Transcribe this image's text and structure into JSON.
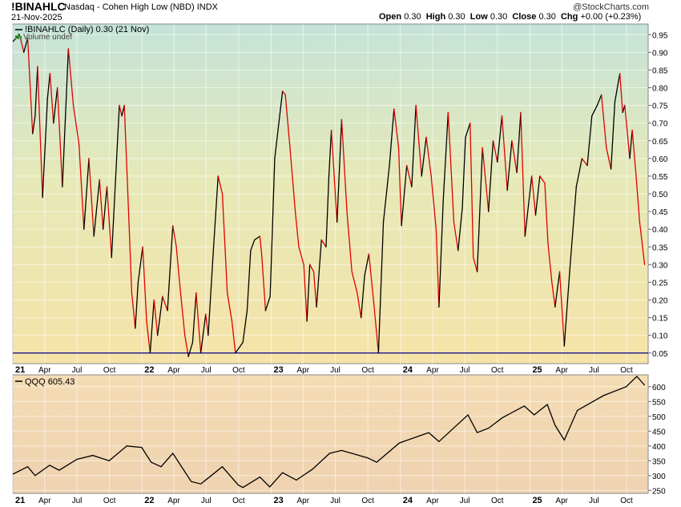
{
  "header": {
    "symbol": "!BINAHLC",
    "description": "Nasdaq - Cohen High Low (NBD)",
    "exchange": "INDX",
    "date": "21-Nov-2025",
    "open_label": "Open",
    "open": "0.30",
    "high_label": "High",
    "high": "0.30",
    "low_label": "Low",
    "low": "0.30",
    "close_label": "Close",
    "close": "0.30",
    "chg_label": "Chg",
    "chg": "+0.00 (+0.23%)",
    "logo": "@StockCharts.com"
  },
  "colors": {
    "up": "#000000",
    "down": "#e00000",
    "qqq": "#000000",
    "baseline": "#000080"
  },
  "chart_data": [
    {
      "type": "line",
      "legend": "!BINAHLC (Daily) 0.30 (21 Nov)",
      "volume_note": "Volume undef",
      "ylim": [
        0.02,
        0.98
      ],
      "yticks": [
        0.95,
        0.9,
        0.85,
        0.8,
        0.75,
        0.7,
        0.65,
        0.6,
        0.55,
        0.5,
        0.45,
        0.4,
        0.35,
        0.3,
        0.25,
        0.2,
        0.15,
        0.1,
        0.05
      ],
      "ytick_labels": [
        "0.95",
        "0.90",
        "0.85",
        "0.80",
        "0.75",
        "0.70",
        "0.65",
        "0.60",
        "0.55",
        "0.50",
        "0.45",
        "0.40",
        "0.35",
        "0.30",
        "0.25",
        "0.20",
        "0.15",
        "0.10",
        "0.05"
      ],
      "horizontal_line": 0.05,
      "x_range": [
        "2021-01-01",
        "2025-12-01"
      ],
      "xtick_labels": [
        "21",
        "Apr",
        "Jul",
        "Oct",
        "22",
        "Apr",
        "Jul",
        "Oct",
        "23",
        "Apr",
        "Jul",
        "Oct",
        "24",
        "Apr",
        "Jul",
        "Oct",
        "25",
        "Apr",
        "Jul",
        "Oct"
      ],
      "xtick_dates": [
        "2021-01-01",
        "2021-04-01",
        "2021-07-01",
        "2021-10-01",
        "2022-01-01",
        "2022-04-01",
        "2022-07-01",
        "2022-10-01",
        "2023-01-01",
        "2023-04-01",
        "2023-07-01",
        "2023-10-01",
        "2024-01-01",
        "2024-04-01",
        "2024-07-01",
        "2024-10-01",
        "2025-01-01",
        "2025-04-01",
        "2025-07-01",
        "2025-10-01"
      ],
      "year_labels": [
        "21",
        "22",
        "23",
        "24",
        "25"
      ],
      "series": [
        {
          "values": [
            [
              "2021-01-01",
              0.93
            ],
            [
              "2021-01-20",
              0.95
            ],
            [
              "2021-02-01",
              0.9
            ],
            [
              "2021-02-12",
              0.94
            ],
            [
              "2021-02-26",
              0.67
            ],
            [
              "2021-03-05",
              0.72
            ],
            [
              "2021-03-12",
              0.86
            ],
            [
              "2021-03-26",
              0.49
            ],
            [
              "2021-04-09",
              0.77
            ],
            [
              "2021-04-16",
              0.84
            ],
            [
              "2021-04-26",
              0.7
            ],
            [
              "2021-05-07",
              0.8
            ],
            [
              "2021-05-21",
              0.52
            ],
            [
              "2021-06-07",
              0.91
            ],
            [
              "2021-06-21",
              0.75
            ],
            [
              "2021-07-07",
              0.64
            ],
            [
              "2021-07-21",
              0.4
            ],
            [
              "2021-08-04",
              0.6
            ],
            [
              "2021-08-18",
              0.38
            ],
            [
              "2021-09-03",
              0.54
            ],
            [
              "2021-09-13",
              0.4
            ],
            [
              "2021-09-24",
              0.52
            ],
            [
              "2021-10-07",
              0.32
            ],
            [
              "2021-10-29",
              0.75
            ],
            [
              "2021-11-05",
              0.72
            ],
            [
              "2021-11-12",
              0.75
            ],
            [
              "2021-11-22",
              0.5
            ],
            [
              "2021-12-03",
              0.22
            ],
            [
              "2021-12-13",
              0.12
            ],
            [
              "2021-12-21",
              0.25
            ],
            [
              "2022-01-03",
              0.35
            ],
            [
              "2022-01-14",
              0.14
            ],
            [
              "2022-01-24",
              0.05
            ],
            [
              "2022-02-04",
              0.2
            ],
            [
              "2022-02-14",
              0.1
            ],
            [
              "2022-02-28",
              0.21
            ],
            [
              "2022-03-14",
              0.17
            ],
            [
              "2022-03-29",
              0.41
            ],
            [
              "2022-04-08",
              0.35
            ],
            [
              "2022-04-19",
              0.23
            ],
            [
              "2022-05-02",
              0.1
            ],
            [
              "2022-05-12",
              0.04
            ],
            [
              "2022-05-24",
              0.08
            ],
            [
              "2022-06-03",
              0.22
            ],
            [
              "2022-06-16",
              0.05
            ],
            [
              "2022-06-30",
              0.16
            ],
            [
              "2022-07-07",
              0.1
            ],
            [
              "2022-07-21",
              0.33
            ],
            [
              "2022-08-04",
              0.55
            ],
            [
              "2022-08-16",
              0.5
            ],
            [
              "2022-08-30",
              0.22
            ],
            [
              "2022-09-12",
              0.14
            ],
            [
              "2022-09-22",
              0.05
            ],
            [
              "2022-10-13",
              0.08
            ],
            [
              "2022-10-25",
              0.17
            ],
            [
              "2022-11-04",
              0.34
            ],
            [
              "2022-11-15",
              0.37
            ],
            [
              "2022-11-30",
              0.38
            ],
            [
              "2022-12-05",
              0.33
            ],
            [
              "2022-12-16",
              0.17
            ],
            [
              "2022-12-29",
              0.21
            ],
            [
              "2023-01-11",
              0.6
            ],
            [
              "2023-02-02",
              0.79
            ],
            [
              "2023-02-10",
              0.78
            ],
            [
              "2023-02-24",
              0.62
            ],
            [
              "2023-03-10",
              0.45
            ],
            [
              "2023-03-20",
              0.35
            ],
            [
              "2023-04-03",
              0.3
            ],
            [
              "2023-04-12",
              0.14
            ],
            [
              "2023-04-20",
              0.3
            ],
            [
              "2023-05-01",
              0.28
            ],
            [
              "2023-05-09",
              0.18
            ],
            [
              "2023-05-23",
              0.37
            ],
            [
              "2023-06-05",
              0.35
            ],
            [
              "2023-06-13",
              0.55
            ],
            [
              "2023-06-20",
              0.68
            ],
            [
              "2023-07-06",
              0.42
            ],
            [
              "2023-07-19",
              0.71
            ],
            [
              "2023-08-03",
              0.45
            ],
            [
              "2023-08-17",
              0.28
            ],
            [
              "2023-09-01",
              0.22
            ],
            [
              "2023-09-12",
              0.15
            ],
            [
              "2023-09-22",
              0.27
            ],
            [
              "2023-10-04",
              0.33
            ],
            [
              "2023-10-18",
              0.19
            ],
            [
              "2023-10-31",
              0.05
            ],
            [
              "2023-11-14",
              0.42
            ],
            [
              "2023-12-01",
              0.58
            ],
            [
              "2023-12-14",
              0.74
            ],
            [
              "2023-12-27",
              0.63
            ],
            [
              "2024-01-04",
              0.41
            ],
            [
              "2024-01-19",
              0.58
            ],
            [
              "2024-02-02",
              0.52
            ],
            [
              "2024-02-14",
              0.75
            ],
            [
              "2024-03-01",
              0.55
            ],
            [
              "2024-03-14",
              0.66
            ],
            [
              "2024-03-28",
              0.55
            ],
            [
              "2024-04-11",
              0.4
            ],
            [
              "2024-04-19",
              0.18
            ],
            [
              "2024-05-01",
              0.48
            ],
            [
              "2024-05-15",
              0.73
            ],
            [
              "2024-05-31",
              0.42
            ],
            [
              "2024-06-12",
              0.34
            ],
            [
              "2024-06-24",
              0.46
            ],
            [
              "2024-07-03",
              0.66
            ],
            [
              "2024-07-16",
              0.7
            ],
            [
              "2024-07-25",
              0.32
            ],
            [
              "2024-08-05",
              0.28
            ],
            [
              "2024-08-20",
              0.63
            ],
            [
              "2024-09-06",
              0.45
            ],
            [
              "2024-09-19",
              0.65
            ],
            [
              "2024-10-01",
              0.59
            ],
            [
              "2024-10-14",
              0.72
            ],
            [
              "2024-10-29",
              0.51
            ],
            [
              "2024-11-11",
              0.65
            ],
            [
              "2024-11-25",
              0.56
            ],
            [
              "2024-12-06",
              0.73
            ],
            [
              "2024-12-18",
              0.38
            ],
            [
              "2025-01-06",
              0.55
            ],
            [
              "2025-01-17",
              0.44
            ],
            [
              "2025-01-29",
              0.55
            ],
            [
              "2025-02-12",
              0.53
            ],
            [
              "2025-02-21",
              0.36
            ],
            [
              "2025-03-04",
              0.25
            ],
            [
              "2025-03-13",
              0.18
            ],
            [
              "2025-03-26",
              0.28
            ],
            [
              "2025-04-08",
              0.07
            ],
            [
              "2025-04-24",
              0.29
            ],
            [
              "2025-05-12",
              0.52
            ],
            [
              "2025-05-28",
              0.6
            ],
            [
              "2025-06-12",
              0.58
            ],
            [
              "2025-06-25",
              0.72
            ],
            [
              "2025-07-10",
              0.75
            ],
            [
              "2025-07-22",
              0.78
            ],
            [
              "2025-08-05",
              0.63
            ],
            [
              "2025-08-18",
              0.57
            ],
            [
              "2025-08-29",
              0.76
            ],
            [
              "2025-09-12",
              0.84
            ],
            [
              "2025-09-20",
              0.73
            ],
            [
              "2025-09-26",
              0.75
            ],
            [
              "2025-10-10",
              0.6
            ],
            [
              "2025-10-17",
              0.68
            ],
            [
              "2025-10-28",
              0.55
            ],
            [
              "2025-11-07",
              0.42
            ],
            [
              "2025-11-21",
              0.3
            ]
          ]
        }
      ]
    },
    {
      "type": "line",
      "legend": "QQQ 605.43",
      "ylim": [
        240,
        640
      ],
      "yticks": [
        600,
        550,
        500,
        450,
        400,
        350,
        300,
        250
      ],
      "ytick_labels": [
        "600",
        "550",
        "500",
        "450",
        "400",
        "350",
        "300",
        "250"
      ],
      "x_range": [
        "2021-01-01",
        "2025-12-01"
      ],
      "xtick_labels": [
        "21",
        "Apr",
        "Jul",
        "Oct",
        "22",
        "Apr",
        "Jul",
        "Oct",
        "23",
        "Apr",
        "Jul",
        "Oct",
        "24",
        "Apr",
        "Jul",
        "Oct",
        "25",
        "Apr",
        "Jul",
        "Oct"
      ],
      "series": [
        {
          "name": "QQQ",
          "values": [
            [
              "2021-01-01",
              305
            ],
            [
              "2021-02-12",
              330
            ],
            [
              "2021-03-05",
              300
            ],
            [
              "2021-04-15",
              335
            ],
            [
              "2021-05-12",
              318
            ],
            [
              "2021-07-01",
              355
            ],
            [
              "2021-08-15",
              368
            ],
            [
              "2021-09-30",
              350
            ],
            [
              "2021-11-19",
              400
            ],
            [
              "2021-12-31",
              395
            ],
            [
              "2022-01-27",
              345
            ],
            [
              "2022-02-24",
              330
            ],
            [
              "2022-03-29",
              375
            ],
            [
              "2022-05-20",
              280
            ],
            [
              "2022-06-16",
              272
            ],
            [
              "2022-08-16",
              330
            ],
            [
              "2022-09-30",
              268
            ],
            [
              "2022-10-13",
              260
            ],
            [
              "2022-11-30",
              295
            ],
            [
              "2022-12-28",
              262
            ],
            [
              "2023-02-02",
              310
            ],
            [
              "2023-03-13",
              285
            ],
            [
              "2023-04-28",
              322
            ],
            [
              "2023-06-15",
              375
            ],
            [
              "2023-07-19",
              385
            ],
            [
              "2023-09-30",
              360
            ],
            [
              "2023-10-26",
              345
            ],
            [
              "2023-12-29",
              410
            ],
            [
              "2024-03-21",
              445
            ],
            [
              "2024-04-19",
              415
            ],
            [
              "2024-07-10",
              505
            ],
            [
              "2024-08-05",
              445
            ],
            [
              "2024-09-06",
              460
            ],
            [
              "2024-10-15",
              495
            ],
            [
              "2024-12-16",
              535
            ],
            [
              "2025-01-13",
              505
            ],
            [
              "2025-02-19",
              540
            ],
            [
              "2025-03-13",
              470
            ],
            [
              "2025-04-08",
              420
            ],
            [
              "2025-05-15",
              520
            ],
            [
              "2025-07-28",
              570
            ],
            [
              "2025-09-30",
              600
            ],
            [
              "2025-10-30",
              635
            ],
            [
              "2025-11-21",
              605
            ]
          ]
        }
      ]
    }
  ]
}
